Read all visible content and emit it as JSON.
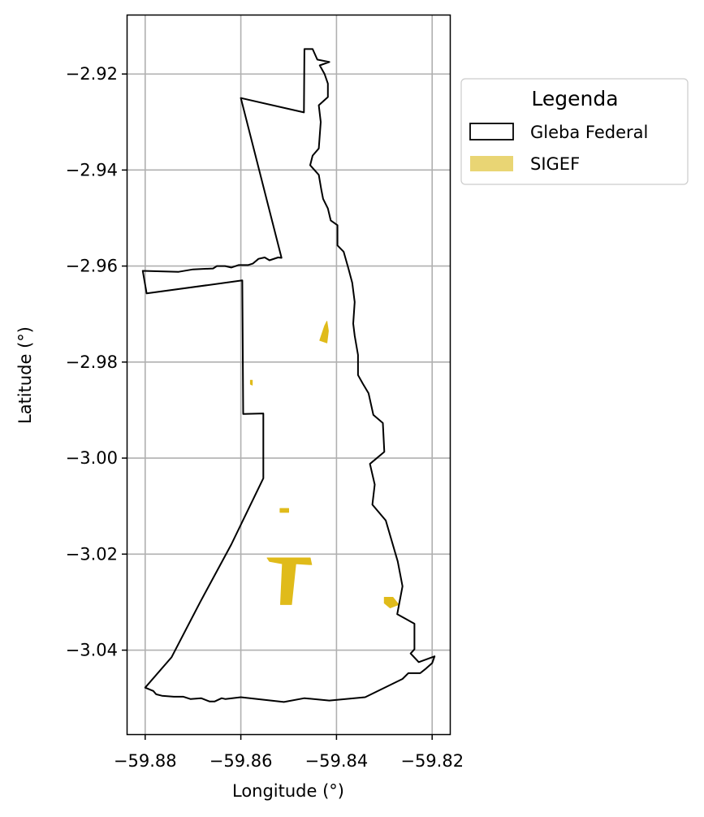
{
  "chart_data": {
    "type": "map",
    "xlabel": "Longitude (°)",
    "ylabel": "Latitude (°)",
    "xlim": [
      -59.8837,
      -59.8163
    ],
    "ylim": [
      -3.0575,
      -2.9078
    ],
    "xticks": [
      -59.88,
      -59.86,
      -59.84,
      -59.82
    ],
    "xtick_labels": [
      "−59.88",
      "−59.86",
      "−59.84",
      "−59.82"
    ],
    "yticks": [
      -2.92,
      -2.94,
      -2.96,
      -2.98,
      -3.0,
      -3.02,
      -3.04
    ],
    "ytick_labels": [
      "−2.92",
      "−2.94",
      "−2.96",
      "−2.98",
      "−3.00",
      "−3.02",
      "−3.04"
    ],
    "grid": true,
    "legend": {
      "title": "Legenda",
      "placement": "outside-right-top",
      "items": [
        {
          "label": "Gleba Federal",
          "style": "outline",
          "color": "#000000"
        },
        {
          "label": "SIGEF",
          "style": "fill",
          "color": "#e9d574"
        }
      ]
    },
    "layers": [
      {
        "name": "Gleba Federal",
        "kind": "polygon",
        "stroke": "#000000",
        "fill": "none",
        "coordinates": [
          [
            -59.8467,
            -2.9148
          ],
          [
            -59.845,
            -2.9148
          ],
          [
            -59.844,
            -2.917
          ],
          [
            -59.8415,
            -2.9175
          ],
          [
            -59.8435,
            -2.9182
          ],
          [
            -59.8425,
            -2.92
          ],
          [
            -59.8418,
            -2.922
          ],
          [
            -59.8418,
            -2.9248
          ],
          [
            -59.8437,
            -2.9265
          ],
          [
            -59.8433,
            -2.93
          ],
          [
            -59.8437,
            -2.9355
          ],
          [
            -59.845,
            -2.937
          ],
          [
            -59.8455,
            -2.939
          ],
          [
            -59.8437,
            -2.941
          ],
          [
            -59.8432,
            -2.944
          ],
          [
            -59.8428,
            -2.946
          ],
          [
            -59.8418,
            -2.948
          ],
          [
            -59.8412,
            -2.9505
          ],
          [
            -59.8398,
            -2.9515
          ],
          [
            -59.8398,
            -2.9557
          ],
          [
            -59.8385,
            -2.957
          ],
          [
            -59.8375,
            -2.9605
          ],
          [
            -59.8367,
            -2.9635
          ],
          [
            -59.8362,
            -2.9675
          ],
          [
            -59.8365,
            -2.972
          ],
          [
            -59.8362,
            -2.9745
          ],
          [
            -59.8355,
            -2.9785
          ],
          [
            -59.8355,
            -2.9827
          ],
          [
            -59.8345,
            -2.9845
          ],
          [
            -59.8333,
            -2.9865
          ],
          [
            -59.8323,
            -2.991
          ],
          [
            -59.8303,
            -2.9927
          ],
          [
            -59.83,
            -2.9987
          ],
          [
            -59.833,
            -3.0012
          ],
          [
            -59.832,
            -3.0055
          ],
          [
            -59.8325,
            -3.0097
          ],
          [
            -59.8297,
            -3.013
          ],
          [
            -59.8272,
            -3.0215
          ],
          [
            -59.8262,
            -3.0267
          ],
          [
            -59.8273,
            -3.0325
          ],
          [
            -59.8237,
            -3.0345
          ],
          [
            -59.8237,
            -3.0398
          ],
          [
            -59.8245,
            -3.0407
          ],
          [
            -59.8228,
            -3.0425
          ],
          [
            -59.8195,
            -3.0413
          ],
          [
            -59.82,
            -3.0427
          ],
          [
            -59.8215,
            -3.044
          ],
          [
            -59.8225,
            -3.0448
          ],
          [
            -59.825,
            -3.0448
          ],
          [
            -59.8262,
            -3.046
          ],
          [
            -59.834,
            -3.0498
          ],
          [
            -59.8415,
            -3.0505
          ],
          [
            -59.8467,
            -3.05
          ],
          [
            -59.851,
            -3.0508
          ],
          [
            -59.86,
            -3.0498
          ],
          [
            -59.8632,
            -3.0502
          ],
          [
            -59.864,
            -3.05
          ],
          [
            -59.8655,
            -3.0507
          ],
          [
            -59.8665,
            -3.0507
          ],
          [
            -59.8683,
            -3.05
          ],
          [
            -59.8705,
            -3.0502
          ],
          [
            -59.872,
            -3.0497
          ],
          [
            -59.874,
            -3.0497
          ],
          [
            -59.8765,
            -3.0495
          ],
          [
            -59.8777,
            -3.0492
          ],
          [
            -59.8783,
            -3.0485
          ],
          [
            -59.88,
            -3.0478
          ],
          [
            -59.8745,
            -3.0415
          ],
          [
            -59.8685,
            -3.03
          ],
          [
            -59.862,
            -3.018
          ],
          [
            -59.8553,
            -3.0042
          ],
          [
            -59.8553,
            -2.9907
          ],
          [
            -59.8595,
            -2.9908
          ],
          [
            -59.8597,
            -2.963
          ],
          [
            -59.8797,
            -2.9657
          ],
          [
            -59.8805,
            -2.961
          ],
          [
            -59.873,
            -2.9612
          ],
          [
            -59.87,
            -2.9607
          ],
          [
            -59.8658,
            -2.9605
          ],
          [
            -59.865,
            -2.96
          ],
          [
            -59.8633,
            -2.96
          ],
          [
            -59.862,
            -2.9603
          ],
          [
            -59.8605,
            -2.9598
          ],
          [
            -59.8585,
            -2.9598
          ],
          [
            -59.8575,
            -2.9595
          ],
          [
            -59.8563,
            -2.9585
          ],
          [
            -59.855,
            -2.9582
          ],
          [
            -59.854,
            -2.9588
          ],
          [
            -59.8522,
            -2.9582
          ],
          [
            -59.8515,
            -2.9583
          ],
          [
            -59.8517,
            -2.9575
          ],
          [
            -59.86,
            -2.925
          ],
          [
            -59.8468,
            -2.928
          ]
        ]
      },
      {
        "name": "SIGEF",
        "kind": "polygons",
        "fill": "#e0bb1a",
        "features": [
          [
            [
              -59.8425,
              -2.9725
            ],
            [
              -59.842,
              -2.9715
            ],
            [
              -59.8417,
              -2.9735
            ],
            [
              -59.842,
              -2.976
            ],
            [
              -59.8435,
              -2.9755
            ]
          ],
          [
            [
              -59.858,
              -2.9838
            ],
            [
              -59.8576,
              -2.9838
            ],
            [
              -59.8576,
              -2.9848
            ],
            [
              -59.858,
              -2.9846
            ]
          ],
          [
            [
              -59.8518,
              -3.0105
            ],
            [
              -59.85,
              -3.0105
            ],
            [
              -59.85,
              -3.0113
            ],
            [
              -59.8518,
              -3.0113
            ]
          ],
          [
            [
              -59.8545,
              -3.0208
            ],
            [
              -59.8455,
              -3.0208
            ],
            [
              -59.8452,
              -3.0222
            ],
            [
              -59.8485,
              -3.022
            ],
            [
              -59.8494,
              -3.0305
            ],
            [
              -59.8517,
              -3.0305
            ],
            [
              -59.8513,
              -3.022
            ],
            [
              -59.854,
              -3.0215
            ]
          ],
          [
            [
              -59.83,
              -3.029
            ],
            [
              -59.8282,
              -3.029
            ],
            [
              -59.827,
              -3.0305
            ],
            [
              -59.8288,
              -3.0312
            ],
            [
              -59.83,
              -3.0302
            ]
          ]
        ]
      }
    ]
  }
}
